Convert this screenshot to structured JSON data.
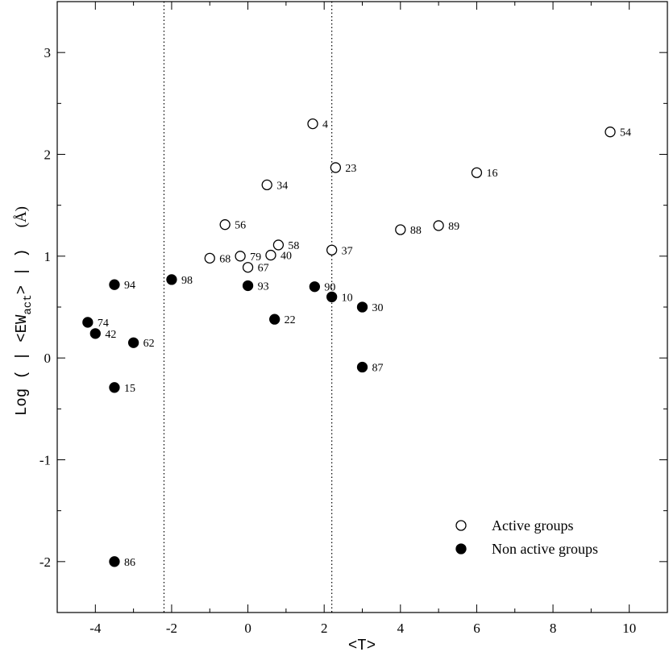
{
  "chart_data": {
    "type": "scatter",
    "title": "",
    "xlabel": "<T>",
    "ylabel": {
      "prefix": "Log ( | <EW",
      "subscript": "act",
      "suffix": "> | )",
      "unit": "(Å)"
    },
    "xlim": [
      -5,
      11
    ],
    "ylim": [
      -2.5,
      3.5
    ],
    "xticks": [
      -4,
      -2,
      0,
      2,
      4,
      6,
      8,
      10
    ],
    "yticks": [
      -2,
      -1,
      0,
      1,
      2,
      3
    ],
    "vlines": [
      -2.2,
      2.2
    ],
    "grid": false,
    "legend_position": "bottom-right",
    "series": [
      {
        "name": "Active groups",
        "marker": "open-circle",
        "points": [
          {
            "x": 1.7,
            "y": 2.3,
            "label": "4"
          },
          {
            "x": 9.5,
            "y": 2.22,
            "label": "54"
          },
          {
            "x": 2.3,
            "y": 1.87,
            "label": "23"
          },
          {
            "x": 6.0,
            "y": 1.82,
            "label": "16"
          },
          {
            "x": 0.5,
            "y": 1.7,
            "label": "34"
          },
          {
            "x": -0.6,
            "y": 1.31,
            "label": "56"
          },
          {
            "x": 5.0,
            "y": 1.3,
            "label": "89"
          },
          {
            "x": 4.0,
            "y": 1.26,
            "label": "88"
          },
          {
            "x": 0.8,
            "y": 1.11,
            "label": "58"
          },
          {
            "x": 2.2,
            "y": 1.06,
            "label": "37"
          },
          {
            "x": 0.6,
            "y": 1.01,
            "label": "40"
          },
          {
            "x": -0.2,
            "y": 1.0,
            "label": "79"
          },
          {
            "x": -1.0,
            "y": 0.98,
            "label": "68"
          },
          {
            "x": 0.0,
            "y": 0.89,
            "label": "67"
          }
        ]
      },
      {
        "name": "Non active groups",
        "marker": "filled-circle",
        "points": [
          {
            "x": -2.0,
            "y": 0.77,
            "label": "98"
          },
          {
            "x": -3.5,
            "y": 0.72,
            "label": "94"
          },
          {
            "x": 0.0,
            "y": 0.71,
            "label": "93"
          },
          {
            "x": 1.75,
            "y": 0.7,
            "label": "90"
          },
          {
            "x": 2.2,
            "y": 0.6,
            "label": "10"
          },
          {
            "x": 3.0,
            "y": 0.5,
            "label": "30"
          },
          {
            "x": 0.7,
            "y": 0.38,
            "label": "22"
          },
          {
            "x": -4.2,
            "y": 0.35,
            "label": "74"
          },
          {
            "x": -4.0,
            "y": 0.24,
            "label": "42"
          },
          {
            "x": -3.0,
            "y": 0.15,
            "label": "62"
          },
          {
            "x": 3.0,
            "y": -0.09,
            "label": "87"
          },
          {
            "x": -3.5,
            "y": -0.29,
            "label": "15"
          },
          {
            "x": -3.5,
            "y": -2.0,
            "label": "86"
          }
        ]
      }
    ]
  }
}
